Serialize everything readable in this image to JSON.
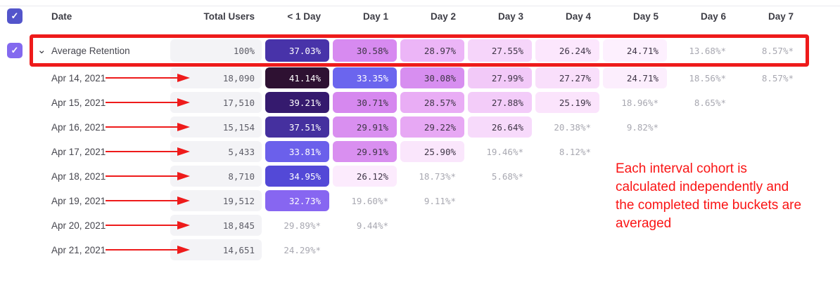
{
  "table": {
    "columns": [
      "Date",
      "Total Users",
      "< 1 Day",
      "Day 1",
      "Day 2",
      "Day 3",
      "Day 4",
      "Day 5",
      "Day 6",
      "Day 7"
    ],
    "rows": [
      {
        "label": "Average Retention",
        "average": true,
        "total": "100%",
        "cells": [
          {
            "text": "37.03%",
            "bg": "#4833a9",
            "fg": "#ffffff"
          },
          {
            "text": "30.58%",
            "bg": "#d78af0"
          },
          {
            "text": "28.97%",
            "bg": "#ecb5f7"
          },
          {
            "text": "27.55%",
            "bg": "#f6d5fa"
          },
          {
            "text": "26.24%",
            "bg": "#fce7fd"
          },
          {
            "text": "24.71%",
            "bg": "#fdf0fe"
          },
          {
            "text": "13.68%*"
          },
          {
            "text": "8.57%*"
          }
        ]
      },
      {
        "label": "Apr 14, 2021",
        "total": "18,090",
        "cells": [
          {
            "text": "41.14%",
            "bg": "#2e1132",
            "fg": "#ffffff"
          },
          {
            "text": "33.35%",
            "bg": "#6b65ee",
            "fg": "#ffffff"
          },
          {
            "text": "30.08%",
            "bg": "#d78ef0"
          },
          {
            "text": "27.99%",
            "bg": "#f2c9f8"
          },
          {
            "text": "27.27%",
            "bg": "#f9dffb"
          },
          {
            "text": "24.71%",
            "bg": "#fceefd"
          },
          {
            "text": "18.56%*"
          },
          {
            "text": "8.57%*"
          }
        ]
      },
      {
        "label": "Apr 15, 2021",
        "total": "17,510",
        "cells": [
          {
            "text": "39.21%",
            "bg": "#351a6e",
            "fg": "#ffffff"
          },
          {
            "text": "30.71%",
            "bg": "#d688ef"
          },
          {
            "text": "28.57%",
            "bg": "#e9adf5"
          },
          {
            "text": "27.88%",
            "bg": "#f3ccf9"
          },
          {
            "text": "25.19%",
            "bg": "#fbe4fc"
          },
          {
            "text": "18.96%*"
          },
          {
            "text": "8.65%*"
          }
        ]
      },
      {
        "label": "Apr 16, 2021",
        "total": "15,154",
        "cells": [
          {
            "text": "37.51%",
            "bg": "#45309f",
            "fg": "#ffffff"
          },
          {
            "text": "29.91%",
            "bg": "#d98ff0"
          },
          {
            "text": "29.22%",
            "bg": "#e7a8f4"
          },
          {
            "text": "26.64%",
            "bg": "#f7dafb"
          },
          {
            "text": "20.38%*"
          },
          {
            "text": "9.82%*"
          }
        ]
      },
      {
        "label": "Apr 17, 2021",
        "total": "5,433",
        "cells": [
          {
            "text": "33.81%",
            "bg": "#6b60eb",
            "fg": "#ffffff"
          },
          {
            "text": "29.91%",
            "bg": "#d98ff0"
          },
          {
            "text": "25.90%",
            "bg": "#fae6fc"
          },
          {
            "text": "19.46%*"
          },
          {
            "text": "8.12%*"
          }
        ]
      },
      {
        "label": "Apr 18, 2021",
        "total": "8,710",
        "cells": [
          {
            "text": "34.95%",
            "bg": "#5349d7",
            "fg": "#ffffff"
          },
          {
            "text": "26.12%",
            "bg": "#fcebfd"
          },
          {
            "text": "18.73%*"
          },
          {
            "text": "5.68%*"
          }
        ]
      },
      {
        "label": "Apr 19, 2021",
        "total": "19,512",
        "cells": [
          {
            "text": "32.73%",
            "bg": "#8766f1",
            "fg": "#ffffff"
          },
          {
            "text": "19.60%*"
          },
          {
            "text": "9.11%*"
          }
        ]
      },
      {
        "label": "Apr 20, 2021",
        "total": "18,845",
        "cells": [
          {
            "text": "29.89%*"
          },
          {
            "text": "9.44%*"
          }
        ]
      },
      {
        "label": "Apr 21, 2021",
        "total": "14,651",
        "cells": [
          {
            "text": "24.29%*"
          }
        ]
      }
    ]
  },
  "annotation": {
    "lines": [
      "Each interval cohort is",
      "calculated independently and",
      "the completed time buckets are",
      "averaged"
    ],
    "color": "#fa1414"
  },
  "colors": {
    "highlight_red": "#ee1b1b",
    "header_checkbox": "#5355cb",
    "row_checkbox": "#8369ef",
    "total_pill_bg": "#f3f3f6",
    "muted_value": "#a8a8b1"
  },
  "icons": {
    "checkmark": "✓",
    "chevron_down": "⌄"
  }
}
